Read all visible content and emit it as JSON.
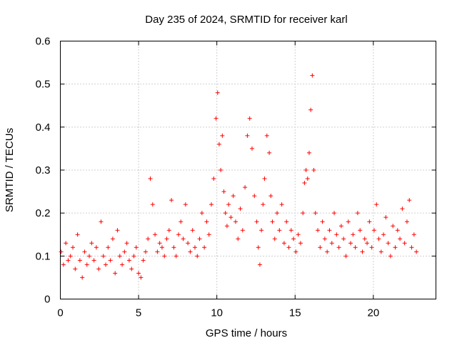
{
  "chart_data": {
    "type": "scatter",
    "title": "Day 235 of 2024, SRMTID for receiver karl",
    "xlabel": "GPS time / hours",
    "ylabel": "SRMTID / TECUs",
    "xlim": [
      0,
      24
    ],
    "ylim": [
      0,
      0.6
    ],
    "xticks": [
      0,
      5,
      10,
      15,
      20
    ],
    "xtick_labels": [
      "0",
      "5",
      "10",
      "15",
      "20"
    ],
    "yticks": [
      0,
      0.1,
      0.2,
      0.3,
      0.4,
      0.5,
      0.6
    ],
    "ytick_labels": [
      "0",
      "0.1",
      "0.2",
      "0.3",
      "0.4",
      "0.5",
      "0.6"
    ],
    "grid": true,
    "marker": "+",
    "series": [
      {
        "name": "SRMTID",
        "color": "#ff0000",
        "x": [
          0.05,
          0.2,
          0.35,
          0.5,
          0.65,
          0.8,
          0.95,
          1.1,
          1.25,
          1.4,
          1.55,
          1.7,
          1.85,
          2.0,
          2.15,
          2.3,
          2.45,
          2.6,
          2.75,
          2.9,
          3.05,
          3.2,
          3.35,
          3.5,
          3.65,
          3.8,
          3.95,
          4.1,
          4.25,
          4.4,
          4.55,
          4.7,
          4.85,
          5.0,
          5.15,
          5.3,
          5.45,
          5.6,
          5.75,
          5.9,
          6.05,
          6.2,
          6.35,
          6.5,
          6.65,
          6.8,
          6.95,
          7.1,
          7.25,
          7.4,
          7.55,
          7.7,
          7.85,
          8.0,
          8.15,
          8.3,
          8.45,
          8.6,
          8.75,
          8.9,
          9.05,
          9.2,
          9.35,
          9.5,
          9.65,
          9.8,
          9.95,
          10.05,
          10.15,
          10.25,
          10.35,
          10.45,
          10.55,
          10.65,
          10.75,
          10.9,
          11.05,
          11.2,
          11.35,
          11.5,
          11.65,
          11.8,
          11.95,
          12.1,
          12.25,
          12.4,
          12.55,
          12.65,
          12.75,
          12.85,
          12.95,
          13.05,
          13.2,
          13.35,
          13.45,
          13.55,
          13.7,
          13.85,
          14.0,
          14.15,
          14.3,
          14.45,
          14.6,
          14.75,
          14.9,
          15.05,
          15.2,
          15.35,
          15.5,
          15.6,
          15.7,
          15.8,
          15.9,
          16.0,
          16.1,
          16.2,
          16.3,
          16.45,
          16.6,
          16.75,
          16.9,
          17.05,
          17.2,
          17.35,
          17.5,
          17.65,
          17.8,
          17.95,
          18.1,
          18.25,
          18.4,
          18.55,
          18.7,
          18.85,
          19.0,
          19.15,
          19.3,
          19.45,
          19.6,
          19.75,
          19.9,
          20.05,
          20.2,
          20.35,
          20.5,
          20.65,
          20.8,
          20.95,
          21.1,
          21.25,
          21.4,
          21.55,
          21.7,
          21.85,
          22.0,
          22.15,
          22.3,
          22.45,
          22.6,
          22.75
        ],
        "y": [
          0.11,
          0.08,
          0.13,
          0.09,
          0.1,
          0.12,
          0.07,
          0.15,
          0.09,
          0.05,
          0.11,
          0.08,
          0.1,
          0.13,
          0.09,
          0.12,
          0.07,
          0.18,
          0.1,
          0.08,
          0.12,
          0.09,
          0.14,
          0.06,
          0.16,
          0.1,
          0.08,
          0.11,
          0.13,
          0.09,
          0.07,
          0.1,
          0.12,
          0.06,
          0.05,
          0.09,
          0.11,
          0.14,
          0.28,
          0.22,
          0.15,
          0.11,
          0.13,
          0.12,
          0.1,
          0.14,
          0.16,
          0.23,
          0.12,
          0.1,
          0.15,
          0.18,
          0.14,
          0.22,
          0.13,
          0.11,
          0.16,
          0.12,
          0.1,
          0.14,
          0.2,
          0.12,
          0.18,
          0.15,
          0.22,
          0.28,
          0.42,
          0.48,
          0.36,
          0.3,
          0.38,
          0.25,
          0.2,
          0.17,
          0.22,
          0.19,
          0.24,
          0.18,
          0.14,
          0.21,
          0.16,
          0.26,
          0.38,
          0.42,
          0.35,
          0.24,
          0.18,
          0.12,
          0.08,
          0.16,
          0.22,
          0.28,
          0.38,
          0.34,
          0.24,
          0.18,
          0.14,
          0.2,
          0.16,
          0.22,
          0.13,
          0.18,
          0.12,
          0.16,
          0.14,
          0.11,
          0.15,
          0.13,
          0.2,
          0.27,
          0.3,
          0.28,
          0.34,
          0.44,
          0.52,
          0.3,
          0.2,
          0.16,
          0.12,
          0.18,
          0.14,
          0.11,
          0.16,
          0.13,
          0.2,
          0.15,
          0.12,
          0.17,
          0.14,
          0.1,
          0.18,
          0.13,
          0.15,
          0.12,
          0.2,
          0.16,
          0.11,
          0.14,
          0.13,
          0.18,
          0.12,
          0.16,
          0.22,
          0.14,
          0.11,
          0.15,
          0.19,
          0.13,
          0.1,
          0.17,
          0.12,
          0.16,
          0.14,
          0.21,
          0.13,
          0.18,
          0.23,
          0.12,
          0.15,
          0.11
        ]
      }
    ]
  }
}
